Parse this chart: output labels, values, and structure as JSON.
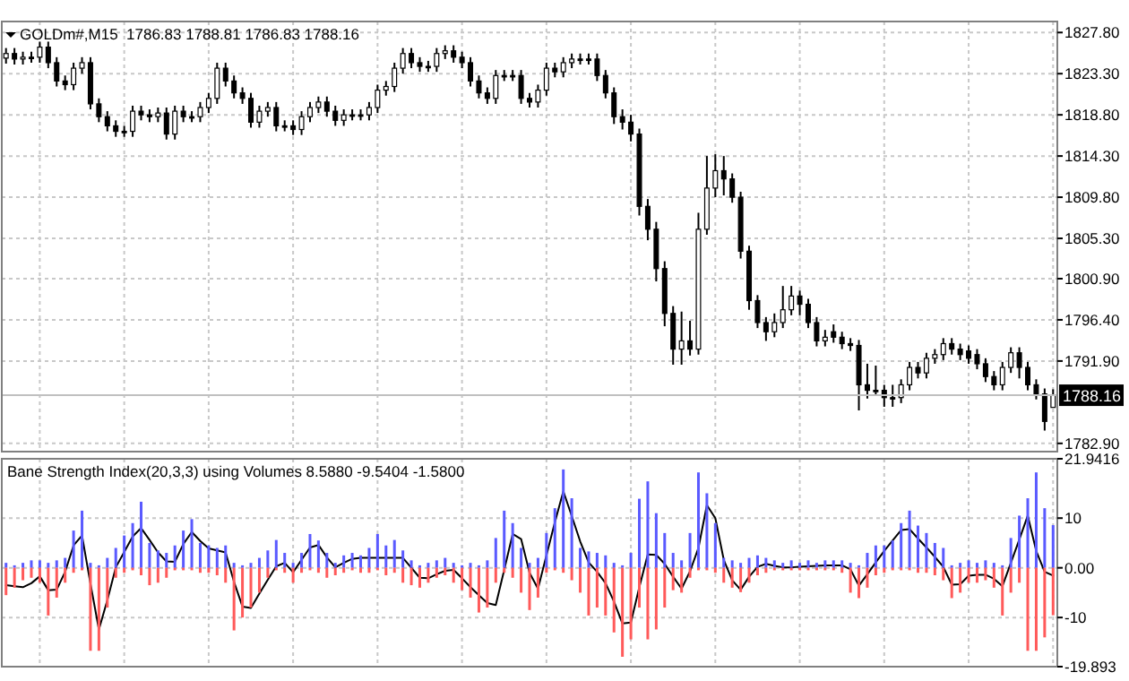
{
  "chart_data": [
    {
      "type": "candlestick",
      "title": "GOLDm#,M15  1786.83 1788.81 1786.83 1788.16",
      "color": "#000000",
      "grid": true,
      "categories": [
        null,
        null,
        null,
        null,
        null,
        null,
        null,
        null,
        null,
        null,
        null,
        null,
        null,
        null,
        null,
        null,
        null,
        null,
        null,
        null,
        null,
        null,
        null,
        null,
        null,
        null,
        null,
        null,
        null,
        null,
        null,
        null,
        null,
        null,
        null,
        null,
        null,
        null,
        null,
        null,
        null,
        null,
        null,
        null,
        null,
        null,
        null,
        null,
        null,
        null,
        null,
        null,
        null,
        null,
        null,
        null,
        null,
        null,
        null,
        null,
        null,
        null,
        null,
        null,
        null,
        null,
        null,
        null,
        null,
        null,
        null,
        null,
        null,
        null,
        null,
        null,
        null,
        null,
        null,
        null,
        null,
        null,
        null,
        null,
        null,
        null,
        null,
        null,
        null,
        null,
        null,
        null,
        null,
        null,
        null,
        null,
        null,
        null,
        null,
        null,
        null,
        null,
        null,
        null,
        null,
        null,
        null,
        null,
        null,
        null,
        null,
        null,
        null,
        null,
        null,
        null,
        null,
        null,
        null,
        null,
        null,
        null,
        null,
        null,
        null
      ],
      "ohlc": [
        [
          1825.0,
          1826.1,
          1824.4,
          1825.5
        ],
        [
          1825.5,
          1826.1,
          1824.3,
          1824.9
        ],
        [
          1824.9,
          1825.7,
          1824.3,
          1825.1
        ],
        [
          1825.1,
          1825.7,
          1824.5,
          1825.1
        ],
        [
          1825.1,
          1826.8,
          1824.5,
          1826.2
        ],
        [
          1826.2,
          1826.8,
          1823.9,
          1824.5
        ],
        [
          1824.5,
          1825.1,
          1821.9,
          1822.5
        ],
        [
          1822.5,
          1823.1,
          1821.5,
          1822.1
        ],
        [
          1822.1,
          1824.5,
          1821.5,
          1823.9
        ],
        [
          1823.9,
          1825.1,
          1823.3,
          1824.5
        ],
        [
          1824.5,
          1825.1,
          1819.4,
          1820.0
        ],
        [
          1820.0,
          1820.6,
          1818.0,
          1818.6
        ],
        [
          1818.6,
          1819.2,
          1817.0,
          1817.6
        ],
        [
          1817.6,
          1818.2,
          1816.4,
          1817.0
        ],
        [
          1817.0,
          1817.6,
          1816.4,
          1817.0
        ],
        [
          1817.0,
          1819.8,
          1816.4,
          1819.2
        ],
        [
          1819.2,
          1819.8,
          1818.2,
          1818.8
        ],
        [
          1818.8,
          1819.4,
          1818.0,
          1818.6
        ],
        [
          1818.6,
          1819.6,
          1818.0,
          1819.0
        ],
        [
          1819.0,
          1819.6,
          1816.1,
          1816.7
        ],
        [
          1816.7,
          1819.8,
          1816.1,
          1819.2
        ],
        [
          1819.2,
          1819.8,
          1818.0,
          1818.6
        ],
        [
          1818.6,
          1819.2,
          1818.0,
          1818.6
        ],
        [
          1818.6,
          1820.2,
          1818.0,
          1819.6
        ],
        [
          1819.6,
          1821.2,
          1819.0,
          1820.6
        ],
        [
          1820.6,
          1824.5,
          1820.0,
          1823.9
        ],
        [
          1823.9,
          1824.5,
          1821.9,
          1822.5
        ],
        [
          1822.5,
          1823.1,
          1820.6,
          1821.2
        ],
        [
          1821.2,
          1821.8,
          1820.0,
          1820.6
        ],
        [
          1820.6,
          1821.2,
          1817.4,
          1818.0
        ],
        [
          1818.0,
          1819.8,
          1817.4,
          1819.2
        ],
        [
          1819.2,
          1820.2,
          1818.6,
          1819.6
        ],
        [
          1819.6,
          1820.2,
          1817.0,
          1817.6
        ],
        [
          1817.6,
          1818.2,
          1817.0,
          1817.6
        ],
        [
          1817.6,
          1818.2,
          1816.6,
          1817.2
        ],
        [
          1817.2,
          1819.2,
          1816.6,
          1818.6
        ],
        [
          1818.6,
          1820.2,
          1818.0,
          1819.6
        ],
        [
          1819.6,
          1820.8,
          1819.0,
          1820.2
        ],
        [
          1820.2,
          1820.8,
          1818.6,
          1819.2
        ],
        [
          1819.2,
          1819.8,
          1817.6,
          1818.2
        ],
        [
          1818.2,
          1819.4,
          1817.6,
          1818.8
        ],
        [
          1818.8,
          1819.4,
          1818.2,
          1818.8
        ],
        [
          1818.8,
          1819.4,
          1818.2,
          1818.8
        ],
        [
          1818.8,
          1820.2,
          1818.2,
          1819.6
        ],
        [
          1819.6,
          1822.1,
          1819.0,
          1821.5
        ],
        [
          1821.5,
          1822.5,
          1820.9,
          1821.9
        ],
        [
          1821.9,
          1824.5,
          1821.3,
          1823.9
        ],
        [
          1823.9,
          1826.1,
          1823.3,
          1825.5
        ],
        [
          1825.5,
          1826.1,
          1823.9,
          1824.5
        ],
        [
          1824.5,
          1825.1,
          1823.5,
          1824.1
        ],
        [
          1824.1,
          1824.7,
          1823.5,
          1824.1
        ],
        [
          1824.1,
          1826.1,
          1823.5,
          1825.5
        ],
        [
          1825.5,
          1826.4,
          1824.9,
          1825.8
        ],
        [
          1825.8,
          1826.4,
          1824.5,
          1825.1
        ],
        [
          1825.1,
          1825.7,
          1823.9,
          1824.5
        ],
        [
          1824.5,
          1825.1,
          1821.9,
          1822.5
        ],
        [
          1822.5,
          1823.1,
          1820.6,
          1821.2
        ],
        [
          1821.2,
          1821.8,
          1820.0,
          1820.6
        ],
        [
          1820.6,
          1823.7,
          1820.0,
          1823.1
        ],
        [
          1823.1,
          1823.7,
          1822.5,
          1823.1
        ],
        [
          1823.1,
          1823.7,
          1822.5,
          1823.1
        ],
        [
          1823.1,
          1823.7,
          1820.0,
          1820.6
        ],
        [
          1820.6,
          1821.2,
          1819.6,
          1820.2
        ],
        [
          1820.2,
          1822.1,
          1819.6,
          1821.5
        ],
        [
          1821.5,
          1824.5,
          1820.9,
          1823.9
        ],
        [
          1823.9,
          1824.5,
          1822.9,
          1823.5
        ],
        [
          1823.5,
          1825.1,
          1822.9,
          1824.5
        ],
        [
          1824.5,
          1825.5,
          1823.9,
          1824.9
        ],
        [
          1824.9,
          1825.5,
          1824.3,
          1824.9
        ],
        [
          1824.9,
          1825.5,
          1824.3,
          1824.9
        ],
        [
          1824.9,
          1825.5,
          1822.5,
          1823.1
        ],
        [
          1823.1,
          1823.7,
          1820.6,
          1821.2
        ],
        [
          1821.2,
          1821.8,
          1817.8,
          1818.6
        ],
        [
          1818.6,
          1819.4,
          1817.2,
          1818.0
        ],
        [
          1818.0,
          1818.8,
          1815.9,
          1816.7
        ],
        [
          1816.7,
          1817.3,
          1807.8,
          1808.8
        ],
        [
          1808.8,
          1809.6,
          1805.1,
          1806.3
        ],
        [
          1806.3,
          1807.1,
          1800.6,
          1802.0
        ],
        [
          1802.0,
          1802.8,
          1795.7,
          1797.1
        ],
        [
          1797.1,
          1797.9,
          1791.5,
          1793.2
        ],
        [
          1793.2,
          1797.3,
          1791.5,
          1794.1
        ],
        [
          1794.1,
          1796.3,
          1792.5,
          1793.2
        ],
        [
          1793.2,
          1808.1,
          1792.6,
          1806.3
        ],
        [
          1806.3,
          1814.3,
          1805.7,
          1810.8
        ],
        [
          1810.8,
          1814.5,
          1809.8,
          1812.7
        ],
        [
          1812.7,
          1814.3,
          1810.0,
          1811.8
        ],
        [
          1811.8,
          1812.4,
          1809.2,
          1809.8
        ],
        [
          1809.8,
          1810.4,
          1803.1,
          1803.9
        ],
        [
          1803.9,
          1804.5,
          1797.5,
          1798.5
        ],
        [
          1798.5,
          1799.1,
          1795.5,
          1796.1
        ],
        [
          1796.1,
          1796.7,
          1794.1,
          1795.1
        ],
        [
          1795.1,
          1797.1,
          1794.5,
          1796.1
        ],
        [
          1796.1,
          1800.1,
          1795.5,
          1797.5
        ],
        [
          1797.5,
          1800.1,
          1796.9,
          1799.0
        ],
        [
          1799.0,
          1799.6,
          1796.9,
          1798.1
        ],
        [
          1798.1,
          1798.7,
          1795.5,
          1796.1
        ],
        [
          1796.1,
          1796.7,
          1793.5,
          1794.1
        ],
        [
          1794.1,
          1795.3,
          1793.5,
          1794.5
        ],
        [
          1795.1,
          1795.9,
          1793.9,
          1794.5
        ],
        [
          1794.5,
          1795.1,
          1793.2,
          1793.8
        ],
        [
          1793.8,
          1794.4,
          1793.0,
          1793.6
        ],
        [
          1793.6,
          1794.2,
          1786.5,
          1789.3
        ],
        [
          1789.3,
          1791.6,
          1787.8,
          1788.7
        ],
        [
          1788.7,
          1791.4,
          1788.1,
          1788.7
        ],
        [
          1788.7,
          1789.3,
          1786.9,
          1787.9
        ],
        [
          1787.9,
          1789.3,
          1786.9,
          1787.9
        ],
        [
          1787.9,
          1789.9,
          1787.3,
          1789.3
        ],
        [
          1789.3,
          1791.8,
          1788.7,
          1791.2
        ],
        [
          1791.2,
          1791.8,
          1790.0,
          1790.6
        ],
        [
          1790.6,
          1792.8,
          1790.0,
          1792.2
        ],
        [
          1792.2,
          1793.2,
          1791.6,
          1792.6
        ],
        [
          1792.6,
          1794.4,
          1792.0,
          1793.8
        ],
        [
          1793.8,
          1794.4,
          1792.6,
          1793.2
        ],
        [
          1793.2,
          1793.8,
          1792.0,
          1792.6
        ],
        [
          1793.0,
          1793.6,
          1791.6,
          1792.2
        ],
        [
          1792.6,
          1793.2,
          1791.0,
          1791.6
        ],
        [
          1791.6,
          1792.2,
          1789.6,
          1790.2
        ],
        [
          1790.2,
          1790.8,
          1788.7,
          1789.3
        ],
        [
          1789.3,
          1791.8,
          1788.7,
          1791.2
        ],
        [
          1791.2,
          1793.4,
          1790.6,
          1792.8
        ],
        [
          1792.8,
          1793.4,
          1790.0,
          1791.2
        ],
        [
          1791.2,
          1791.8,
          1788.7,
          1789.3
        ],
        [
          1789.3,
          1789.9,
          1787.7,
          1788.3
        ],
        [
          1788.3,
          1788.9,
          1784.3,
          1785.3
        ],
        [
          1786.83,
          1788.81,
          1786.83,
          1788.16
        ]
      ],
      "ylim": [
        1782.0,
        1829.0
      ],
      "yticks": [
        {
          "value": 1827.8,
          "label": "1827.80"
        },
        {
          "value": 1823.3,
          "label": "1823.30"
        },
        {
          "value": 1818.8,
          "label": "1818.80"
        },
        {
          "value": 1814.3,
          "label": "1814.30"
        },
        {
          "value": 1809.8,
          "label": "1809.80"
        },
        {
          "value": 1805.3,
          "label": "1805.30"
        },
        {
          "value": 1800.9,
          "label": "1800.90"
        },
        {
          "value": 1796.4,
          "label": "1796.40"
        },
        {
          "value": 1791.9,
          "label": "1791.90"
        },
        {
          "value": 1782.9,
          "label": "1782.90"
        }
      ],
      "ref_lines": [
        {
          "axis": "y",
          "value": 1788.16,
          "label": "1788.16",
          "color": "#c0c0c0"
        }
      ]
    },
    {
      "type": "bar",
      "title": "Bane Strength Index(20,3,3) using Volumes 8.5880 -9.5404 -1.5800",
      "grid": true,
      "categories": [
        null,
        null,
        null,
        null,
        null,
        null,
        null,
        null,
        null,
        null,
        null,
        null,
        null,
        null,
        null,
        null,
        null,
        null,
        null,
        null,
        null,
        null,
        null,
        null,
        null,
        null,
        null,
        null,
        null,
        null,
        null,
        null,
        null,
        null,
        null,
        null,
        null,
        null,
        null,
        null,
        null,
        null,
        null,
        null,
        null,
        null,
        null,
        null,
        null,
        null,
        null,
        null,
        null,
        null,
        null,
        null,
        null,
        null,
        null,
        null,
        null,
        null,
        null,
        null,
        null,
        null,
        null,
        null,
        null,
        null,
        null,
        null,
        null,
        null,
        null,
        null,
        null,
        null,
        null,
        null,
        null,
        null,
        null,
        null,
        null,
        null,
        null,
        null,
        null,
        null,
        null,
        null,
        null,
        null,
        null,
        null,
        null,
        null,
        null,
        null,
        null,
        null,
        null,
        null,
        null,
        null,
        null,
        null,
        null,
        null,
        null,
        null,
        null,
        null,
        null,
        null,
        null,
        null,
        null,
        null,
        null,
        null,
        null,
        null,
        null
      ],
      "series": [
        {
          "color": "#5a5aff",
          "values": [
            1.0,
            0.5,
            1.0,
            1.5,
            1.5,
            1.0,
            1.5,
            2.0,
            7.5,
            11.5,
            1.0,
            0.5,
            2.0,
            4.0,
            6.5,
            9.0,
            13.3,
            5.0,
            3.5,
            3.0,
            4.5,
            7.5,
            9.8,
            5.0,
            4.5,
            4.0,
            4.5,
            1.0,
            0.5,
            1.0,
            2.0,
            3.5,
            5.6,
            3.0,
            1.0,
            3.0,
            6.8,
            5.5,
            3.0,
            1.0,
            2.5,
            3.0,
            2.5,
            4.0,
            6.8,
            4.5,
            5.6,
            3.5,
            1.5,
            0.5,
            1.0,
            1.5,
            2.0,
            1.0,
            0.5,
            1.0,
            0.5,
            1.5,
            6.0,
            11.5,
            9.0,
            4.0,
            1.0,
            2.0,
            7.0,
            12.0,
            19.8,
            14.0,
            4.0,
            3.3,
            3.0,
            2.5,
            1.0,
            0.5,
            3.0,
            13.9,
            17.4,
            11.0,
            7.0,
            3.0,
            1.5,
            7.0,
            19.2,
            15.0,
            9.0,
            2.0,
            1.5,
            1.0,
            2.0,
            2.5,
            2.0,
            1.5,
            1.0,
            1.5,
            1.0,
            1.5,
            1.0,
            1.5,
            1.5,
            1.5,
            1.0,
            0.5,
            3.0,
            4.5,
            4.5,
            5.5,
            9.0,
            11.5,
            8.5,
            7.0,
            5.0,
            4.0,
            0.5,
            1.0,
            1.5,
            1.0,
            1.5,
            1.0,
            0.5,
            6.0,
            10.5,
            14.0,
            19.2,
            12.0,
            8.588
          ]
        },
        {
          "color": "#ff5a5a",
          "values": [
            -5.5,
            -4.0,
            -2.5,
            -2.0,
            -3.0,
            -9.6,
            -6.0,
            -3.0,
            -1.0,
            -0.5,
            -16.7,
            -16.7,
            -8.0,
            -2.0,
            -1.0,
            -0.5,
            -1.5,
            -3.5,
            -3.0,
            -2.0,
            -0.5,
            -0.5,
            -0.5,
            -1.0,
            -1.0,
            -1.5,
            -3.0,
            -12.6,
            -10.0,
            -8.0,
            -5.0,
            -2.0,
            -0.5,
            -1.0,
            -3.0,
            -1.0,
            -0.5,
            -1.0,
            -2.0,
            -1.5,
            -1.0,
            -0.5,
            -1.0,
            -1.0,
            -0.5,
            -1.5,
            -1.0,
            -3.0,
            -3.5,
            -4.0,
            -3.0,
            -2.0,
            -1.5,
            -3.0,
            -4.5,
            -6.0,
            -9.0,
            -8.0,
            -3.0,
            -1.0,
            -2.0,
            -5.0,
            -8.5,
            -6.0,
            -1.0,
            -0.5,
            -1.0,
            -2.5,
            -5.0,
            -9.6,
            -8.0,
            -9.6,
            -13.0,
            -17.9,
            -14.4,
            -8.0,
            -14.4,
            -12.4,
            -8.0,
            -4.5,
            -5.0,
            -2.0,
            -0.5,
            -0.5,
            -1.0,
            -3.0,
            -4.0,
            -4.9,
            -3.0,
            -1.5,
            -1.0,
            -0.5,
            -0.5,
            -0.5,
            -0.5,
            -0.5,
            -0.5,
            -0.5,
            -0.5,
            -1.0,
            -5.0,
            -6.1,
            -4.0,
            -1.5,
            -1.0,
            -0.5,
            -0.5,
            -0.5,
            -1.0,
            -1.0,
            -1.5,
            -2.5,
            -6.1,
            -5.0,
            -3.0,
            -3.0,
            -2.5,
            -4.0,
            -9.6,
            -5.0,
            -3.0,
            -16.7,
            -16.7,
            -14.0,
            -9.5404
          ]
        },
        {
          "type": "line",
          "color": "#000000",
          "values": [
            -3.5,
            -3.7,
            -3.9,
            -3.1,
            -1.7,
            -4.5,
            -4.4,
            -0.8,
            4.5,
            6.5,
            -3.2,
            -12.4,
            -6.5,
            0.1,
            3.2,
            6.3,
            8.0,
            5.6,
            3.1,
            1.3,
            1.2,
            4.8,
            7.2,
            5.4,
            3.9,
            3.5,
            3.1,
            -2.8,
            -7.8,
            -8.1,
            -5.2,
            -2.4,
            0.3,
            1.0,
            -0.9,
            1.6,
            4.1,
            4.6,
            2.1,
            0.1,
            1.0,
            1.8,
            2.0,
            2.0,
            2.0,
            2.0,
            2.0,
            2.0,
            0.0,
            -2.0,
            -2.1,
            -1.3,
            -0.6,
            -0.4,
            -2.1,
            -3.9,
            -5.5,
            -7.1,
            -7.5,
            -0.4,
            6.8,
            5.8,
            -1.0,
            -4.2,
            2.5,
            9.2,
            15.4,
            10.4,
            5.3,
            1.1,
            -0.8,
            -3.1,
            -6.8,
            -11.2,
            -11.0,
            -3.9,
            2.7,
            2.6,
            0.8,
            -1.8,
            -4.2,
            -0.7,
            4.0,
            12.6,
            10.0,
            1.6,
            -2.5,
            -4.4,
            -1.8,
            0.2,
            0.8,
            0.4,
            0.1,
            0.1,
            0.2,
            0.3,
            0.4,
            0.5,
            0.5,
            0.5,
            -0.3,
            -3.6,
            -1.3,
            1.1,
            3.4,
            5.5,
            7.6,
            7.8,
            5.9,
            4.1,
            2.2,
            0.2,
            -3.4,
            -3.3,
            -1.6,
            -1.4,
            -1.4,
            -2.2,
            -3.7,
            1.0,
            5.7,
            10.5,
            3.4,
            -0.8,
            -1.58
          ]
        }
      ],
      "ylim": [
        -19.893,
        21.9416
      ],
      "yticks": [
        {
          "value": 21.9416,
          "label": "21.9416"
        },
        10,
        {
          "value": 0,
          "label": "0.00"
        },
        -10,
        {
          "value": -19.893,
          "label": "-19.893"
        }
      ]
    }
  ]
}
